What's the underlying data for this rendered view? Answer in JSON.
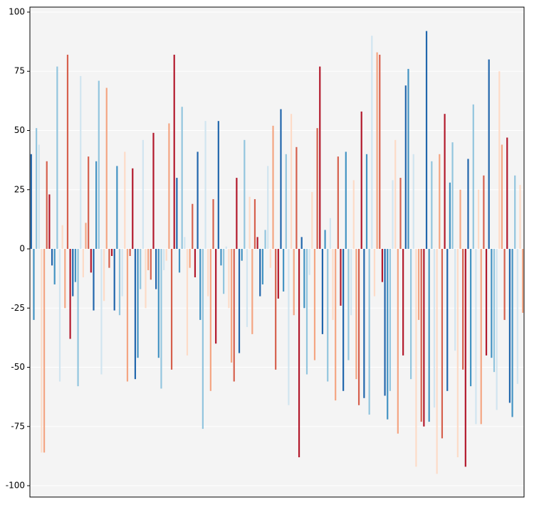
{
  "chart_data": {
    "type": "bar",
    "values": [
      40,
      -30,
      51,
      44,
      -86,
      -86,
      37,
      23,
      -7,
      -15,
      77,
      -56,
      10,
      -25,
      82,
      -38,
      -20,
      -14,
      -58,
      73,
      -12,
      11,
      39,
      -10,
      -26,
      37,
      71,
      -53,
      -22,
      68,
      -8,
      -3,
      -26,
      35,
      -28,
      -20,
      41,
      -56,
      -3,
      34,
      -55,
      -46,
      -17,
      46,
      -25,
      -9,
      -13,
      49,
      -17,
      -46,
      -59,
      -9,
      -5,
      53,
      -51,
      82,
      30,
      -10,
      60,
      5,
      -45,
      -8,
      19,
      -12,
      41,
      -30,
      -76,
      54,
      -20,
      -60,
      21,
      -40,
      54,
      -7,
      -19,
      1,
      -25,
      -48,
      -56,
      30,
      -44,
      -5,
      46,
      -33,
      22,
      -36,
      21,
      5,
      -20,
      -15,
      8,
      35,
      -8,
      52,
      -51,
      -21,
      59,
      -18,
      40,
      -66,
      57,
      -28,
      43,
      -88,
      5,
      -25,
      -53,
      -11,
      24,
      -47,
      51,
      77,
      -36,
      8,
      -56,
      13,
      -30,
      -64,
      39,
      -24,
      -60,
      41,
      -47,
      -28,
      29,
      -55,
      -66,
      58,
      -63,
      40,
      -70,
      90,
      -20,
      83,
      82,
      -14,
      -62,
      -72,
      -60,
      29,
      46,
      -78,
      30,
      -45,
      69,
      76,
      -55,
      40,
      -92,
      -30,
      -73,
      -75,
      92,
      -73,
      37,
      -67,
      -95,
      40,
      -80,
      57,
      -60,
      28,
      45,
      -43,
      -88,
      25,
      -51,
      -92,
      38,
      -58,
      61,
      -74,
      25,
      -74,
      31,
      -45,
      80,
      -46,
      -52,
      -68,
      75,
      44,
      -30,
      47,
      -65,
      -71,
      31,
      -57,
      27,
      -27
    ],
    "colors": [
      "#2166ac",
      "#4393c3",
      "#92c5de",
      "#d1e5f0",
      "#fddbc7",
      "#f4a582",
      "#d6604d",
      "#b2182b"
    ],
    "ylim": [
      -104.8,
      102.1
    ],
    "yticks": [
      -100,
      -75,
      -50,
      -25,
      0,
      25,
      50,
      75,
      100
    ],
    "grid": true
  }
}
